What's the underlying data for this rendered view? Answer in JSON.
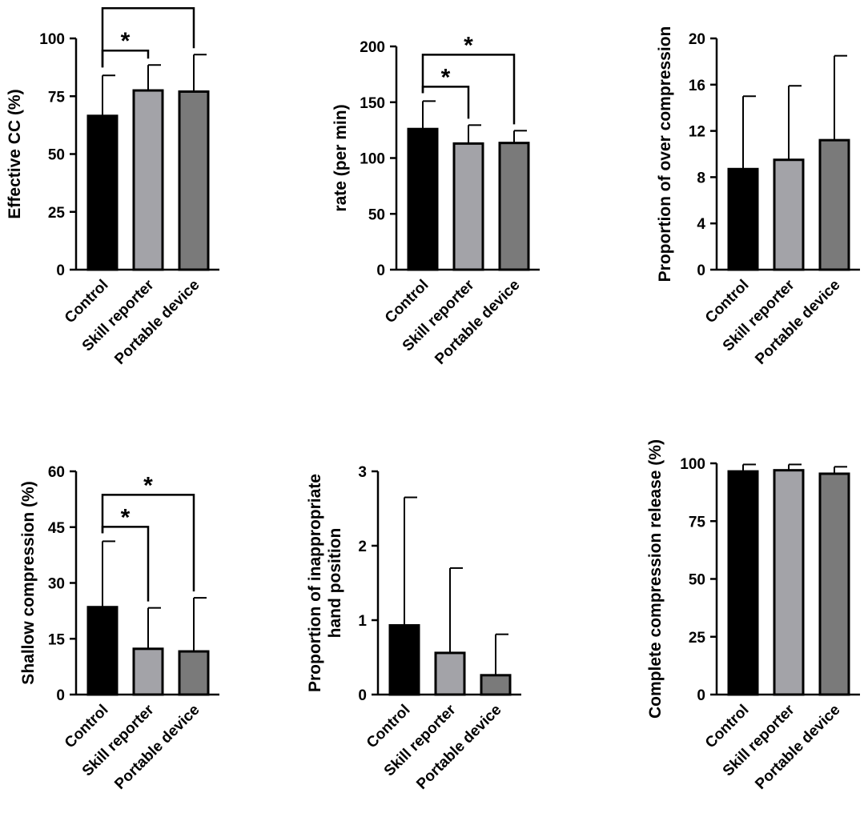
{
  "colors": {
    "control": "#000000",
    "skill_reporter": "#a3a3a8",
    "portable_device": "#7a7a7a",
    "outline": "#000000"
  },
  "chart_data": [
    {
      "type": "bar",
      "id": "effective-cc",
      "ylabel": "Effective CC (%)",
      "ylim": [
        0,
        100
      ],
      "yticks": [
        0,
        25,
        50,
        75,
        100
      ],
      "categories": [
        "Control",
        "Skill reporter",
        "Portable device"
      ],
      "values": [
        66.5,
        77.5,
        77
      ],
      "errors": [
        17.5,
        11,
        16
      ],
      "significance": [
        {
          "from": 0,
          "to": 1,
          "label": "*"
        },
        {
          "from": 0,
          "to": 2,
          "label": "*"
        }
      ]
    },
    {
      "type": "bar",
      "id": "rate",
      "ylabel": "rate (per min)",
      "ylim": [
        0,
        200
      ],
      "yticks": [
        0,
        50,
        100,
        150,
        200
      ],
      "categories": [
        "Control",
        "Skill reporter",
        "Portable device"
      ],
      "values": [
        126,
        113,
        113.5
      ],
      "errors": [
        25,
        16.5,
        11
      ],
      "significance": [
        {
          "from": 0,
          "to": 1,
          "label": "*"
        },
        {
          "from": 0,
          "to": 2,
          "label": "*"
        }
      ]
    },
    {
      "type": "bar",
      "id": "over-compression",
      "ylabel": "Proportion of over compression",
      "ylim": [
        0,
        20
      ],
      "yticks": [
        0,
        4,
        8,
        12,
        16,
        20
      ],
      "categories": [
        "Control",
        "Skill reporter",
        "Portable device"
      ],
      "values": [
        8.7,
        9.5,
        11.2
      ],
      "errors": [
        6.3,
        6.4,
        7.3
      ],
      "significance": []
    },
    {
      "type": "bar",
      "id": "shallow-compression",
      "ylabel": "Shallow compression (%)",
      "ylim": [
        0,
        60
      ],
      "yticks": [
        0,
        15,
        30,
        45,
        60
      ],
      "categories": [
        "Control",
        "Skill reporter",
        "Portable device"
      ],
      "values": [
        23.5,
        12.3,
        11.6
      ],
      "errors": [
        17.7,
        11,
        14.4
      ],
      "significance": [
        {
          "from": 0,
          "to": 1,
          "label": "*"
        },
        {
          "from": 0,
          "to": 2,
          "label": "*"
        }
      ]
    },
    {
      "type": "bar",
      "id": "hand-position",
      "ylabel": [
        "Proportion of inappropriate",
        "hand position"
      ],
      "ylim": [
        0,
        3
      ],
      "yticks": [
        0,
        1,
        2,
        3
      ],
      "categories": [
        "Control",
        "Skill reporter",
        "Portable device"
      ],
      "values": [
        0.93,
        0.56,
        0.26
      ],
      "errors": [
        1.72,
        1.14,
        0.55
      ],
      "significance": []
    },
    {
      "type": "bar",
      "id": "complete-release",
      "ylabel": "Complete compression release (%)",
      "ylim": [
        0,
        100
      ],
      "yticks": [
        0,
        25,
        50,
        75,
        100
      ],
      "categories": [
        "Control",
        "Skill reporter",
        "Portable device"
      ],
      "values": [
        96.5,
        97,
        95.5
      ],
      "errors": [
        3,
        2.5,
        3
      ],
      "significance": []
    }
  ]
}
